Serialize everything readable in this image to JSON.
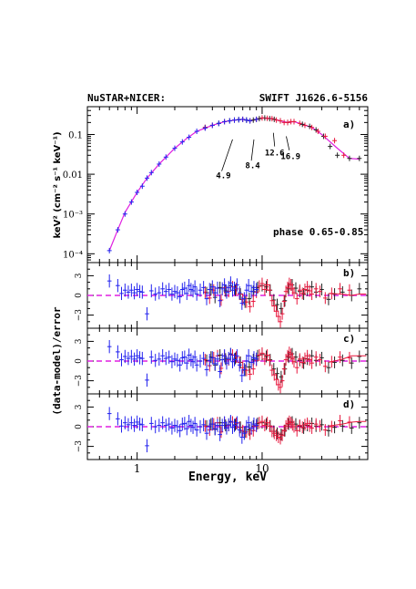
{
  "header": {
    "left": "NuSTAR+NICER:",
    "right": "SWIFT J1626.6-5156"
  },
  "xlabel": "Energy, keV",
  "residual_ylabel": "(data-model)/error",
  "panels": [
    {
      "label": "a)",
      "ylabel": "keV² (cm⁻² s⁻¹ keV⁻¹)",
      "phase_text": "phase 0.65-0.85"
    },
    {
      "label": "b)"
    },
    {
      "label": "c)"
    },
    {
      "label": "d)"
    }
  ],
  "annotations": [
    {
      "text": "4.9",
      "energy": 4.9
    },
    {
      "text": "8.4",
      "energy": 8.4
    },
    {
      "text": "12.6",
      "energy": 12.6
    },
    {
      "text": "16.9",
      "energy": 16.9
    }
  ],
  "x_ticks": [
    {
      "value": 1,
      "label": "1"
    },
    {
      "value": 10,
      "label": "10"
    }
  ],
  "spectrum_y_ticks": [
    {
      "value": 0.0001,
      "label": "10⁻⁴"
    },
    {
      "value": 0.001,
      "label": "10⁻³"
    },
    {
      "value": 0.01,
      "label": "0.01"
    },
    {
      "value": 0.1,
      "label": "0.1"
    }
  ],
  "residual_y_ticks": [
    {
      "value": 3,
      "label": "3"
    },
    {
      "value": 0,
      "label": "0"
    },
    {
      "value": -3,
      "label": "−3"
    }
  ],
  "colors": {
    "nicer": "#2222ee",
    "nustar_a": "#e8163c",
    "nustar_b": "#222222",
    "model": "#e020e0",
    "zero_line": "#e020e0"
  },
  "chart_data": {
    "type": "scatter",
    "xscale": "log",
    "xlim": [
      0.4,
      70
    ],
    "panel_a": {
      "yscale": "log",
      "ylim": [
        6e-05,
        0.5
      ],
      "model": {
        "x": [
          0.6,
          0.7,
          0.8,
          1.0,
          1.2,
          1.5,
          2.0,
          2.5,
          3.0,
          4.0,
          5.0,
          6.0,
          7.0,
          8.0,
          9.0,
          10,
          12,
          14,
          16,
          18,
          20,
          25,
          30,
          40,
          50,
          60
        ],
        "y": [
          0.00012,
          0.0004,
          0.0011,
          0.0035,
          0.008,
          0.018,
          0.045,
          0.08,
          0.12,
          0.17,
          0.21,
          0.23,
          0.24,
          0.22,
          0.24,
          0.26,
          0.25,
          0.22,
          0.2,
          0.21,
          0.19,
          0.15,
          0.1,
          0.045,
          0.025,
          0.024
        ]
      },
      "nicer": {
        "x": [
          0.6,
          0.7,
          0.8,
          0.9,
          1.0,
          1.1,
          1.2,
          1.3,
          1.5,
          1.7,
          2.0,
          2.3,
          2.6,
          3.0,
          3.5,
          4.0,
          4.5,
          5.0,
          5.5,
          6.0,
          6.5,
          7.0,
          7.5,
          8.0,
          9.0
        ],
        "y": [
          0.00012,
          0.0004,
          0.001,
          0.002,
          0.0035,
          0.005,
          0.008,
          0.011,
          0.018,
          0.027,
          0.045,
          0.065,
          0.085,
          0.12,
          0.145,
          0.17,
          0.19,
          0.21,
          0.22,
          0.23,
          0.235,
          0.24,
          0.23,
          0.22,
          0.24
        ]
      },
      "nustar_a": {
        "x": [
          3.5,
          4.0,
          5.0,
          6.0,
          7.0,
          8.0,
          9.0,
          10,
          11,
          12,
          13,
          14,
          15,
          16,
          17,
          18,
          20,
          22,
          25,
          28,
          32,
          38,
          45
        ],
        "y": [
          0.15,
          0.17,
          0.21,
          0.23,
          0.24,
          0.22,
          0.24,
          0.26,
          0.255,
          0.25,
          0.23,
          0.22,
          0.2,
          0.2,
          0.21,
          0.21,
          0.19,
          0.17,
          0.15,
          0.12,
          0.09,
          0.07,
          0.03
        ]
      },
      "nustar_b": {
        "x": [
          3.5,
          4.5,
          5.5,
          6.5,
          7.5,
          8.5,
          9.5,
          10.5,
          11.5,
          12.5,
          14,
          16,
          18,
          21,
          24,
          27,
          31,
          35,
          40,
          50,
          60
        ],
        "y": [
          0.15,
          0.19,
          0.22,
          0.235,
          0.23,
          0.23,
          0.25,
          0.26,
          0.25,
          0.24,
          0.22,
          0.2,
          0.21,
          0.18,
          0.16,
          0.13,
          0.09,
          0.05,
          0.03,
          0.025,
          0.025
        ]
      }
    },
    "residuals": {
      "ylim": [
        -5,
        5
      ],
      "nicer_x": [
        0.6,
        0.7,
        0.75,
        0.8,
        0.85,
        0.9,
        0.95,
        1.0,
        1.05,
        1.1,
        1.2,
        1.3,
        1.4,
        1.5,
        1.6,
        1.7,
        1.8,
        1.9,
        2.0,
        2.1,
        2.2,
        2.3,
        2.4,
        2.5,
        2.6,
        2.7,
        2.8,
        2.9,
        3.0,
        3.2,
        3.4,
        3.6,
        3.8,
        4.0,
        4.2,
        4.4,
        4.6,
        4.8,
        5.0,
        5.2,
        5.4,
        5.6,
        5.8,
        6.0,
        6.3,
        6.6,
        6.9,
        7.2,
        7.5,
        7.8,
        8.2,
        8.6,
        9.0
      ],
      "nustar_a_x": [
        3.5,
        3.8,
        4.1,
        4.4,
        4.7,
        5.0,
        5.4,
        5.8,
        6.2,
        6.6,
        7.0,
        7.5,
        8.0,
        8.5,
        9.0,
        9.5,
        10,
        10.5,
        11,
        11.5,
        12,
        12.5,
        13,
        13.5,
        14,
        14.5,
        15,
        15.5,
        16,
        16.5,
        17,
        17.5,
        18,
        19,
        20,
        21,
        22,
        23,
        24,
        25,
        27,
        29,
        32,
        36,
        42,
        50
      ],
      "nustar_b_x": [
        3.6,
        3.9,
        4.2,
        4.6,
        5.1,
        5.6,
        6.1,
        6.7,
        7.3,
        7.9,
        8.5,
        9.2,
        10,
        10.8,
        11.6,
        12.4,
        13.2,
        14.2,
        15.2,
        16.3,
        17.4,
        18.6,
        20,
        21.5,
        23,
        25,
        27,
        30,
        34,
        38,
        44,
        52,
        60
      ],
      "b": {
        "nicer": [
          2.2,
          1.5,
          0.3,
          0.8,
          0.5,
          0.8,
          0.4,
          0.9,
          0.6,
          0.5,
          -2.8,
          0.7,
          0.2,
          0.4,
          1.0,
          0.6,
          0.9,
          0.2,
          0.6,
          0.4,
          -0.2,
          0.9,
          1.1,
          0.3,
          1.5,
          0.9,
          0.7,
          1.3,
          0.2,
          0.8,
          1.2,
          -0.5,
          0.9,
          1.3,
          0.4,
          1.1,
          -0.8,
          1.0,
          1.6,
          0.5,
          1.2,
          1.9,
          0.8,
          1.1,
          1.6,
          0.4,
          -1.2,
          -0.5,
          0.8,
          1.5,
          0.6,
          1.2,
          0.9
        ],
        "nustar_a": [
          0.5,
          -0.4,
          0.8,
          1.1,
          -0.7,
          1.2,
          0.6,
          1.3,
          1.0,
          0.2,
          -0.6,
          -1.0,
          -1.7,
          -0.9,
          0.5,
          1.4,
          1.8,
          0.9,
          1.6,
          0.8,
          -0.8,
          -1.6,
          -2.4,
          -3.2,
          -4.0,
          -2.8,
          -0.9,
          0.6,
          1.2,
          1.8,
          1.6,
          1.0,
          0.4,
          -0.5,
          0.8,
          0.3,
          0.9,
          1.3,
          0.7,
          0.2,
          1.0,
          0.6,
          -0.4,
          0.3,
          1.0,
          0.8
        ],
        "nustar_b": [
          0.4,
          0.9,
          -0.3,
          1.2,
          0.7,
          1.5,
          0.8,
          0.2,
          -1.0,
          -0.5,
          0.6,
          1.2,
          1.5,
          1.3,
          0.8,
          -0.7,
          -1.4,
          -2.0,
          -0.8,
          1.0,
          1.6,
          1.1,
          0.6,
          0.2,
          0.8,
          1.3,
          0.5,
          0.9,
          -0.6,
          0.2,
          0.5,
          0.0,
          1.0
        ]
      },
      "c": {
        "nicer": [
          2.2,
          1.4,
          0.2,
          0.7,
          0.4,
          0.7,
          0.3,
          0.8,
          0.5,
          0.4,
          -2.9,
          0.6,
          0.1,
          0.3,
          0.8,
          0.4,
          0.6,
          -0.1,
          0.3,
          0.1,
          -0.6,
          0.5,
          0.6,
          -0.3,
          0.9,
          0.2,
          -0.1,
          0.6,
          -0.6,
          0.0,
          0.4,
          -1.3,
          0.1,
          0.5,
          -0.4,
          0.3,
          -1.6,
          0.2,
          0.8,
          -0.3,
          0.4,
          1.0,
          -0.1,
          0.2,
          0.8,
          -0.6,
          -2.2,
          -1.3,
          0.0,
          0.8,
          -0.2,
          0.5,
          0.3
        ],
        "nustar_a": [
          0.2,
          -0.7,
          0.5,
          0.8,
          -1.1,
          0.8,
          0.2,
          0.9,
          0.6,
          -0.2,
          -1.0,
          -1.4,
          -2.0,
          -1.2,
          0.1,
          0.9,
          1.2,
          0.3,
          0.9,
          0.1,
          -1.4,
          -2.1,
          -2.8,
          -3.6,
          -4.0,
          -3.0,
          -1.2,
          0.2,
          0.8,
          1.3,
          1.0,
          0.4,
          -0.1,
          -1.0,
          0.3,
          -0.2,
          0.4,
          0.8,
          0.2,
          -0.3,
          0.6,
          0.2,
          -0.8,
          -0.1,
          0.6,
          0.5
        ],
        "nustar_b": [
          0.1,
          0.6,
          -0.6,
          0.9,
          0.3,
          1.1,
          0.4,
          -0.2,
          -1.4,
          -0.9,
          0.2,
          0.8,
          1.0,
          0.7,
          0.2,
          -1.2,
          -1.9,
          -2.4,
          -1.2,
          0.6,
          1.1,
          0.6,
          0.1,
          -0.3,
          0.3,
          0.8,
          0.1,
          0.5,
          -1.0,
          -0.2,
          0.1,
          -0.3,
          0.7
        ]
      },
      "d": {
        "nicer": [
          2.0,
          1.2,
          0.1,
          0.6,
          0.3,
          0.6,
          0.2,
          0.7,
          0.4,
          0.3,
          -2.9,
          0.5,
          0.0,
          0.2,
          0.6,
          0.2,
          0.4,
          -0.2,
          0.2,
          0.0,
          -0.6,
          0.4,
          0.5,
          -0.3,
          0.8,
          0.2,
          -0.1,
          0.5,
          -0.5,
          0.0,
          0.3,
          -1.0,
          0.1,
          0.4,
          -0.3,
          0.2,
          -1.2,
          0.2,
          0.6,
          -0.2,
          0.3,
          0.8,
          -0.1,
          0.2,
          0.6,
          -0.5,
          -1.6,
          -1.0,
          0.0,
          0.6,
          -0.2,
          0.4,
          0.2
        ],
        "nustar_a": [
          0.1,
          -0.5,
          0.4,
          0.6,
          -0.8,
          0.6,
          0.2,
          0.7,
          0.5,
          -0.1,
          -0.6,
          -0.8,
          -1.1,
          -0.6,
          0.1,
          0.6,
          0.8,
          0.2,
          0.6,
          0.1,
          -0.7,
          -1.0,
          -1.3,
          -1.6,
          -1.8,
          -1.3,
          -0.6,
          0.1,
          0.5,
          0.8,
          0.6,
          0.3,
          0.0,
          -0.6,
          0.2,
          -0.1,
          0.3,
          0.5,
          0.1,
          -0.2,
          0.4,
          0.1,
          -0.5,
          0.0,
          0.9,
          0.7
        ],
        "nustar_b": [
          0.1,
          0.4,
          -0.4,
          0.6,
          0.2,
          0.7,
          0.3,
          -0.1,
          -0.8,
          -0.5,
          0.1,
          0.5,
          0.6,
          0.4,
          0.1,
          -0.7,
          -1.0,
          -1.2,
          -0.6,
          0.4,
          0.7,
          0.4,
          0.1,
          -0.2,
          0.2,
          0.5,
          0.1,
          0.3,
          -0.6,
          -0.1,
          0.1,
          -0.2,
          0.6
        ]
      }
    }
  }
}
